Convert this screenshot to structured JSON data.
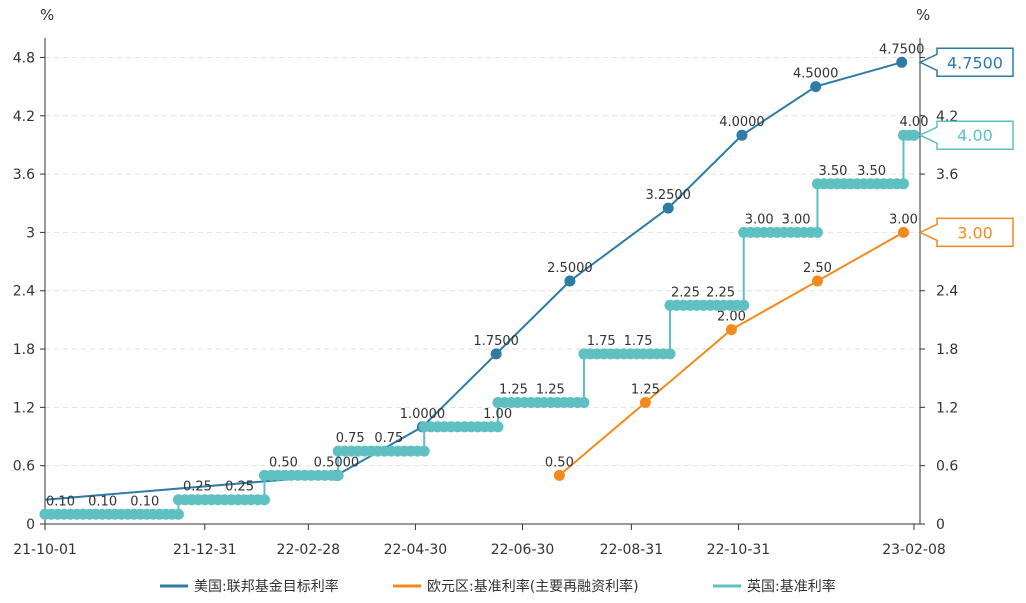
{
  "chart_data": {
    "type": "line",
    "yunit_left": "%",
    "yunit_right": "%",
    "ylim": [
      0,
      5.0
    ],
    "yticks": [
      0,
      0.6,
      1.2,
      1.8,
      2.4,
      3,
      3.6,
      4.2,
      4.8
    ],
    "ytick_labels": [
      "0",
      "0.6",
      "1.2",
      "1.8",
      "2.4",
      "3",
      "3.6",
      "4.2",
      "4.8"
    ],
    "xlim": [
      "2021-10-01",
      "2023-02-08"
    ],
    "xticks": [
      "2021-10-01",
      "2021-12-31",
      "2022-02-28",
      "2022-04-30",
      "2022-06-30",
      "2022-08-31",
      "2022-10-31",
      "2023-02-08"
    ],
    "xtick_labels": [
      "21-10-01",
      "21-12-31",
      "22-02-28",
      "22-04-30",
      "22-06-30",
      "22-08-31",
      "22-10-31",
      "23-02-08"
    ],
    "grid": true,
    "legend_position": "bottom",
    "series": [
      {
        "name": "美国:联邦基金目标利率",
        "color": "#2e7ba6",
        "style": "line",
        "points": [
          {
            "x": "2021-10-01",
            "y": 0.25
          },
          {
            "x": "2022-03-16",
            "y": 0.5,
            "label": "0.5000"
          },
          {
            "x": "2022-05-04",
            "y": 1.0,
            "label": "1.0000"
          },
          {
            "x": "2022-06-15",
            "y": 1.75,
            "label": "1.7500"
          },
          {
            "x": "2022-07-27",
            "y": 2.5,
            "label": "2.5000"
          },
          {
            "x": "2022-09-21",
            "y": 3.25,
            "label": "3.2500"
          },
          {
            "x": "2022-11-02",
            "y": 4.0,
            "label": "4.0000"
          },
          {
            "x": "2022-12-14",
            "y": 4.5,
            "label": "4.5000"
          },
          {
            "x": "2023-02-01",
            "y": 4.75,
            "label": "4.7500"
          }
        ],
        "end_label": "4.7500"
      },
      {
        "name": "欧元区:基准利率(主要再融资利率)",
        "color": "#f38b1c",
        "style": "line",
        "points": [
          {
            "x": "2022-07-21",
            "y": 0.5,
            "label": "0.50"
          },
          {
            "x": "2022-09-08",
            "y": 1.25,
            "label": "1.25"
          },
          {
            "x": "2022-10-27",
            "y": 2.0,
            "label": "2.00"
          },
          {
            "x": "2022-12-15",
            "y": 2.5,
            "label": "2.50"
          },
          {
            "x": "2023-02-02",
            "y": 3.0,
            "label": "3.00"
          }
        ],
        "end_label": "3.00"
      },
      {
        "name": "英国:基准利率",
        "color": "#5fc0c1",
        "style": "step",
        "segments": [
          {
            "start": "2021-10-01",
            "end": "2021-12-16",
            "y": 0.1,
            "labels": [
              {
                "x": "2021-10-03",
                "text": "0.10"
              },
              {
                "x": "2021-10-27",
                "text": "0.10"
              },
              {
                "x": "2021-11-20",
                "text": "0.10"
              }
            ]
          },
          {
            "start": "2021-12-16",
            "end": "2022-02-03",
            "y": 0.25,
            "labels": [
              {
                "x": "2021-12-20",
                "text": "0.25"
              },
              {
                "x": "2022-01-13",
                "text": "0.25"
              }
            ]
          },
          {
            "start": "2022-02-03",
            "end": "2022-03-17",
            "y": 0.5,
            "labels": [
              {
                "x": "2022-02-07",
                "text": "0.50"
              }
            ]
          },
          {
            "start": "2022-03-17",
            "end": "2022-05-05",
            "y": 0.75,
            "labels": [
              {
                "x": "2022-03-17",
                "text": "0.75"
              },
              {
                "x": "2022-04-08",
                "text": "0.75"
              }
            ]
          },
          {
            "start": "2022-05-05",
            "end": "2022-06-16",
            "y": 1.0,
            "labels": [
              {
                "x": "2022-06-09",
                "text": "1.00"
              }
            ]
          },
          {
            "start": "2022-06-16",
            "end": "2022-08-04",
            "y": 1.25,
            "labels": [
              {
                "x": "2022-06-18",
                "text": "1.25"
              },
              {
                "x": "2022-07-09",
                "text": "1.25"
              }
            ]
          },
          {
            "start": "2022-08-04",
            "end": "2022-09-22",
            "y": 1.75,
            "labels": [
              {
                "x": "2022-08-07",
                "text": "1.75"
              },
              {
                "x": "2022-08-28",
                "text": "1.75"
              }
            ]
          },
          {
            "start": "2022-09-22",
            "end": "2022-11-03",
            "y": 2.25,
            "labels": [
              {
                "x": "2022-09-24",
                "text": "2.25"
              },
              {
                "x": "2022-10-14",
                "text": "2.25"
              }
            ]
          },
          {
            "start": "2022-11-03",
            "end": "2022-12-15",
            "y": 3.0,
            "labels": [
              {
                "x": "2022-11-05",
                "text": "3.00"
              },
              {
                "x": "2022-11-26",
                "text": "3.00"
              }
            ]
          },
          {
            "start": "2022-12-15",
            "end": "2023-02-02",
            "y": 3.5,
            "labels": [
              {
                "x": "2022-12-17",
                "text": "3.50"
              },
              {
                "x": "2023-01-08",
                "text": "3.50"
              }
            ]
          },
          {
            "start": "2023-02-02",
            "end": "2023-02-08",
            "y": 4.0,
            "labels": []
          }
        ],
        "end_point": {
          "x": "2023-02-08",
          "y": 4.0,
          "label": "4.00"
        },
        "end_label": "4.00"
      }
    ]
  }
}
